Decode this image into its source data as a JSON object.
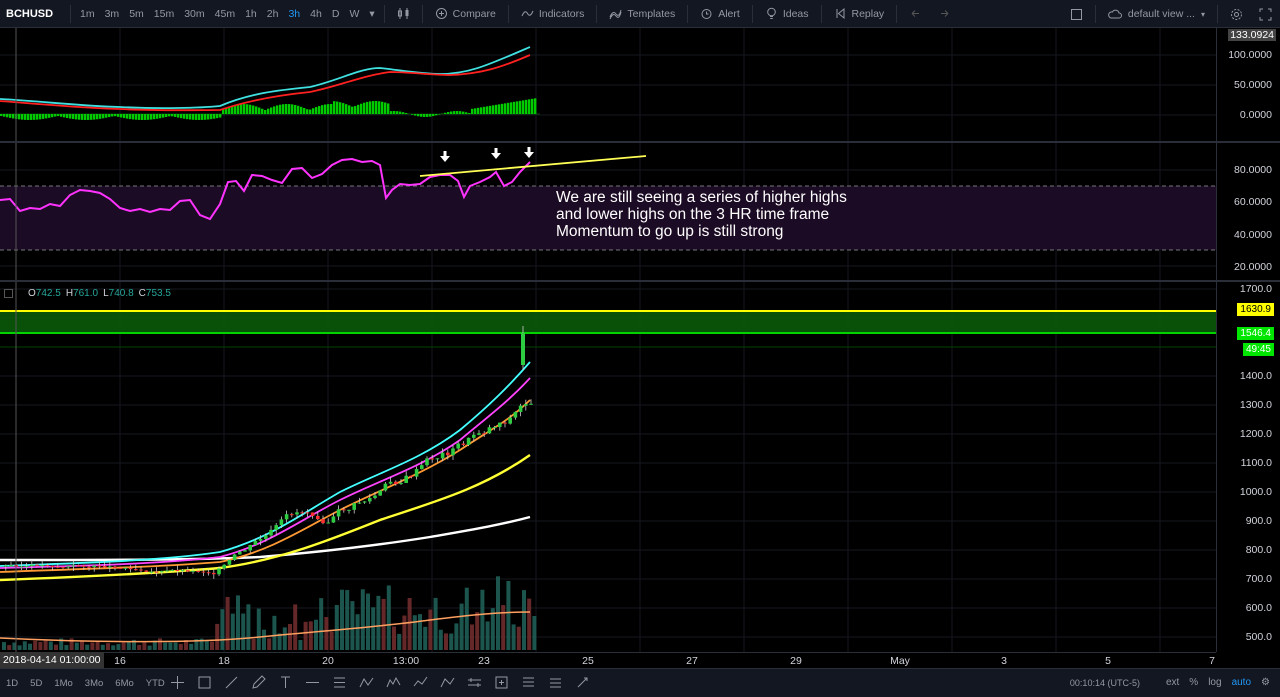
{
  "toolbar": {
    "symbol": "BCHUSD",
    "intervals": [
      "1m",
      "3m",
      "5m",
      "15m",
      "30m",
      "45m",
      "1h",
      "2h",
      "3h",
      "4h",
      "D",
      "W"
    ],
    "active_interval": "3h",
    "compare_label": "Compare",
    "indicators_label": "Indicators",
    "templates_label": "Templates",
    "alert_label": "Alert",
    "ideas_label": "Ideas",
    "replay_label": "Replay",
    "layout_name": "default view ..."
  },
  "osc_pane": {
    "current_value": "133.0924",
    "scale": [
      "100.0000",
      "50.0000",
      "0.0000"
    ]
  },
  "rsi_pane": {
    "scale": [
      "80.0000",
      "60.0000",
      "40.0000",
      "20.0000"
    ]
  },
  "annotation": {
    "line1": "We are still seeing a series of higher highs",
    "line2": "and lower highs on the 3 HR time frame",
    "line3": "Momentum to go up is still strong"
  },
  "main_pane": {
    "ohlc": {
      "o_label": "O",
      "o": "742.5",
      "h_label": "H",
      "h": "761.0",
      "l_label": "L",
      "l": "740.8",
      "c_label": "C",
      "c": "753.5"
    },
    "scale": [
      "1700.0",
      "1400.0",
      "1300.0",
      "1200.0",
      "1100.0",
      "1000.0",
      "900.0",
      "800.0",
      "700.0",
      "600.0",
      "500.0"
    ],
    "badge_resistance": "1630.9",
    "badge_last": "1546.4",
    "badge_countdown": "49:45",
    "colors": {
      "resistance_band": "#00e600",
      "resistance_line": "#ffff00",
      "bull": "#26a69a",
      "bear": "#ef5350"
    }
  },
  "time_axis": {
    "crosshair_date": "2018-04-14 01:00:00",
    "ticks": [
      "16",
      "18",
      "20",
      "13:00",
      "23",
      "25",
      "27",
      "29",
      "May",
      "3",
      "5",
      "7"
    ]
  },
  "bottom": {
    "ranges": [
      "1D",
      "5D",
      "1Mo",
      "3Mo",
      "6Mo",
      "YTD"
    ],
    "clock": "00:10:14 (UTC-5)",
    "ext": "ext",
    "pct": "%",
    "log": "log",
    "auto": "auto"
  }
}
